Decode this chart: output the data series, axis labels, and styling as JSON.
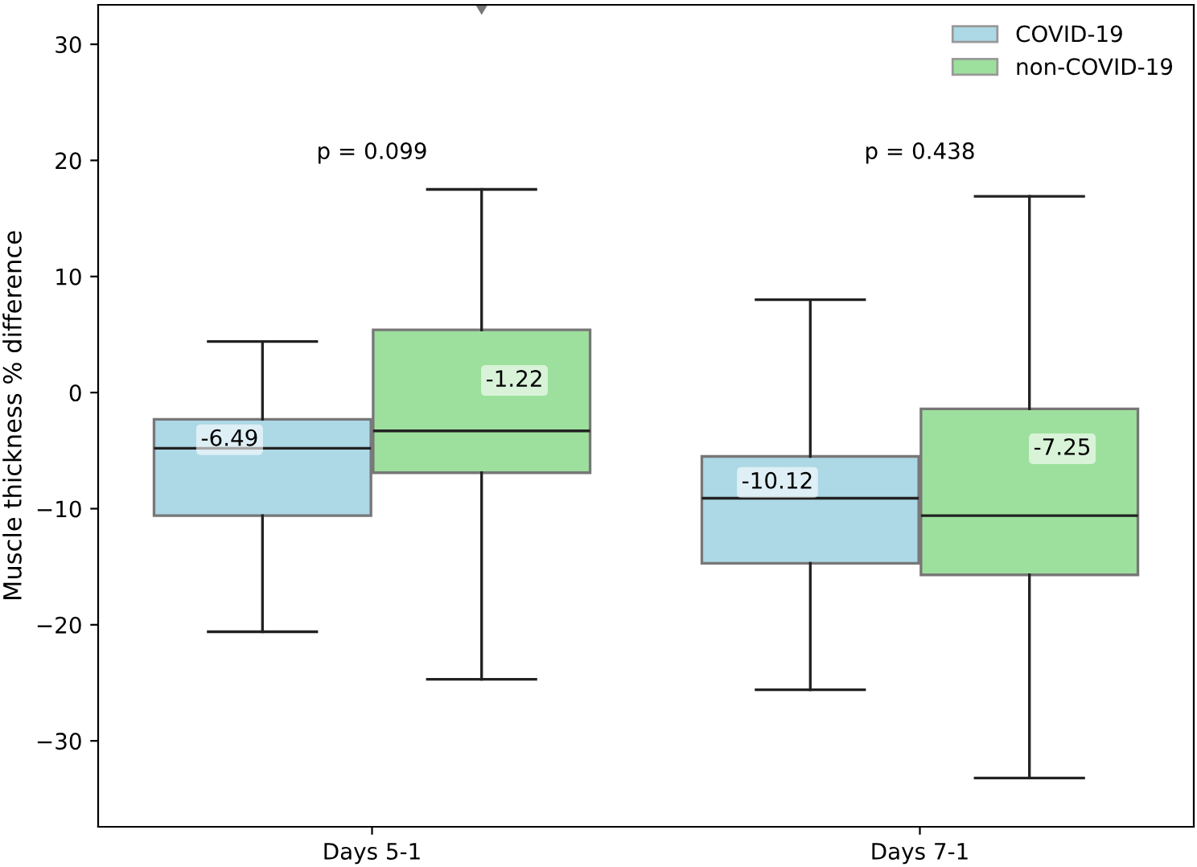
{
  "chart_data": {
    "type": "box",
    "ylabel": "Muscle thickness % difference",
    "categories": [
      "Days 5-1",
      "Days 7-1"
    ],
    "series": [
      {
        "name": "COVID-19",
        "color": "#add8e6",
        "boxes": [
          {
            "low": -20.6,
            "q1": -10.6,
            "median": -4.8,
            "q3": -2.3,
            "high": 4.4
          },
          {
            "low": -25.6,
            "q1": -14.7,
            "median": -9.1,
            "q3": -5.5,
            "high": 8.0
          }
        ]
      },
      {
        "name": "non-COVID-19",
        "color": "#9de09d",
        "boxes": [
          {
            "low": -24.7,
            "q1": -6.9,
            "median": -3.3,
            "q3": 5.4,
            "high": 17.5,
            "outliers": [
              33.4
            ]
          },
          {
            "low": -33.2,
            "q1": -15.7,
            "median": -10.6,
            "q3": -1.4,
            "high": 16.9
          }
        ]
      }
    ],
    "annotations": [
      "p = 0.099",
      "p = 0.438",
      "-6.49",
      "-1.22",
      "-10.12",
      "-7.25"
    ],
    "ylim": [
      -37.4,
      33.4
    ],
    "yticks": [
      {
        "value": -30,
        "label": "−30"
      },
      {
        "value": -20,
        "label": "−20"
      },
      {
        "value": -10,
        "label": "−10"
      },
      0,
      10,
      20,
      30
    ],
    "legend": "top right",
    "grid": false
  }
}
